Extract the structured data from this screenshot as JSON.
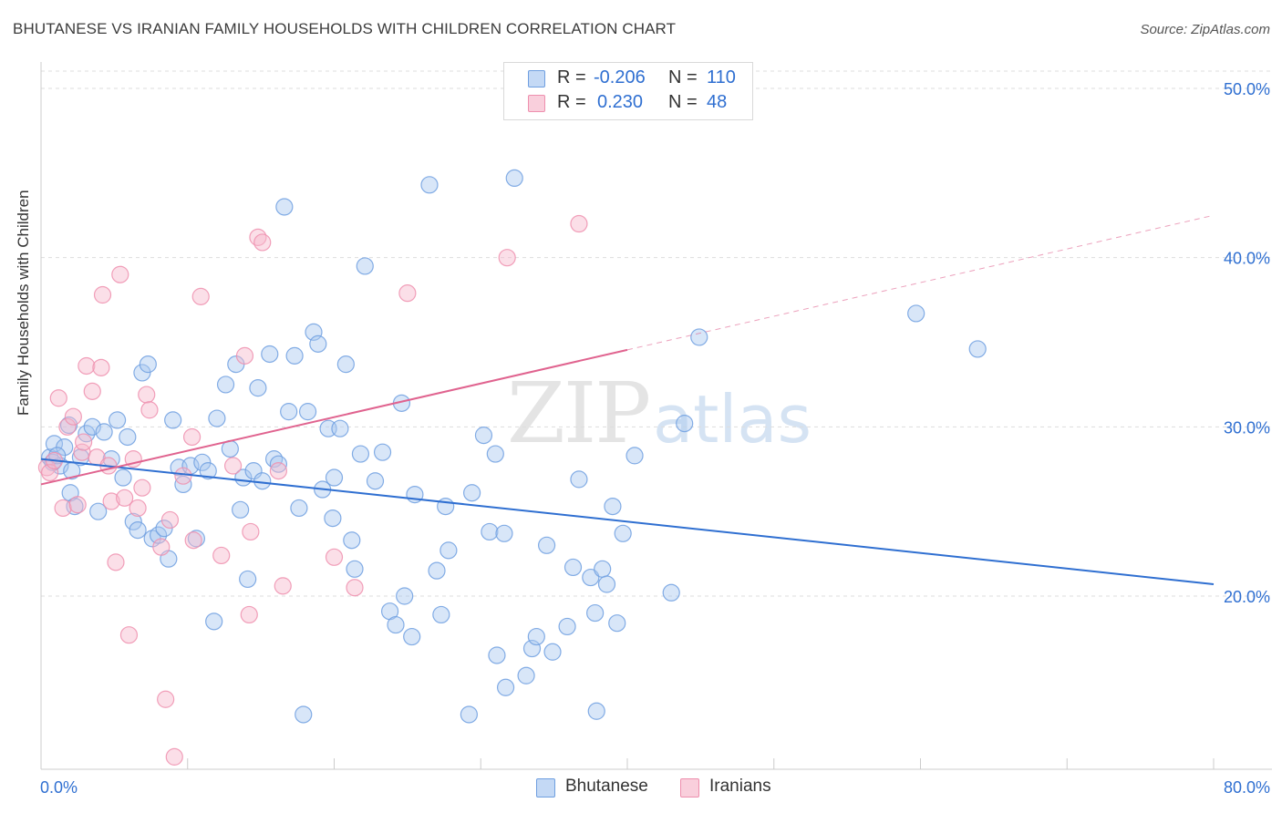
{
  "header": {
    "title": "BHUTANESE VS IRANIAN FAMILY HOUSEHOLDS WITH CHILDREN CORRELATION CHART",
    "source": "Source: ZipAtlas.com"
  },
  "watermark": {
    "zip": "ZIP",
    "atlas": "atlas"
  },
  "legend": {
    "rows": [
      {
        "r_label": "R =",
        "r_value": "-0.206",
        "n_label": "N =",
        "n_value": "110"
      },
      {
        "r_label": "R =",
        "r_value": "0.230",
        "n_label": "N =",
        "n_value": "48"
      }
    ]
  },
  "bottom_legend": {
    "a": "Bhutanese",
    "b": "Iranians"
  },
  "colors": {
    "blue_fill": "#a9c8f0",
    "blue_stroke": "#6f9fe0",
    "blue_line": "#2f6fd1",
    "pink_fill": "#f6b8cc",
    "pink_stroke": "#ee8fae",
    "pink_line": "#e0638f",
    "grid": "#dddddd",
    "tick_label": "#2f6fd1"
  },
  "chart_data": {
    "type": "scatter",
    "title": "BHUTANESE VS IRANIAN FAMILY HOUSEHOLDS WITH CHILDREN CORRELATION CHART",
    "xlabel": "",
    "ylabel": "Family Households with Children",
    "xlim": [
      0,
      80
    ],
    "ylim": [
      10,
      51
    ],
    "x_tick_labels": [
      "0.0%",
      "80.0%"
    ],
    "y_ticks": [
      20,
      30,
      40,
      50
    ],
    "y_tick_labels": [
      "20.0%",
      "30.0%",
      "40.0%",
      "50.0%"
    ],
    "grid": true,
    "legend_position": "top-center",
    "series": [
      {
        "name": "Bhutanese",
        "color": "#a9c8f0",
        "trend": {
          "x": [
            0,
            80
          ],
          "y": [
            28.1,
            20.7
          ],
          "dashed_from": null
        },
        "points": [
          [
            0.6,
            28.2
          ],
          [
            0.9,
            29.0
          ],
          [
            1.3,
            27.7
          ],
          [
            1.6,
            28.8
          ],
          [
            1.9,
            30.1
          ],
          [
            2.0,
            26.1
          ],
          [
            2.3,
            25.3
          ],
          [
            2.7,
            28.2
          ],
          [
            3.1,
            29.6
          ],
          [
            3.5,
            30.0
          ],
          [
            3.9,
            25.0
          ],
          [
            4.3,
            29.7
          ],
          [
            4.8,
            28.1
          ],
          [
            5.2,
            30.4
          ],
          [
            5.6,
            27.0
          ],
          [
            5.9,
            29.4
          ],
          [
            6.3,
            24.4
          ],
          [
            6.6,
            23.9
          ],
          [
            6.9,
            33.2
          ],
          [
            7.3,
            33.7
          ],
          [
            7.6,
            23.4
          ],
          [
            8.0,
            23.6
          ],
          [
            8.4,
            24.0
          ],
          [
            8.7,
            22.2
          ],
          [
            9.0,
            30.4
          ],
          [
            9.4,
            27.6
          ],
          [
            9.7,
            26.6
          ],
          [
            10.2,
            27.7
          ],
          [
            10.6,
            23.4
          ],
          [
            11.0,
            27.9
          ],
          [
            11.4,
            27.4
          ],
          [
            11.8,
            18.5
          ],
          [
            12.0,
            30.5
          ],
          [
            12.6,
            32.5
          ],
          [
            12.9,
            28.7
          ],
          [
            13.3,
            33.7
          ],
          [
            13.6,
            25.1
          ],
          [
            13.8,
            27.0
          ],
          [
            14.1,
            21.0
          ],
          [
            14.5,
            27.4
          ],
          [
            14.8,
            32.3
          ],
          [
            15.1,
            26.8
          ],
          [
            15.6,
            34.3
          ],
          [
            15.9,
            28.1
          ],
          [
            16.2,
            27.8
          ],
          [
            16.6,
            43.0
          ],
          [
            16.9,
            30.9
          ],
          [
            17.3,
            34.2
          ],
          [
            17.6,
            25.2
          ],
          [
            17.9,
            13.0
          ],
          [
            18.2,
            30.9
          ],
          [
            18.6,
            35.6
          ],
          [
            18.9,
            34.9
          ],
          [
            19.2,
            26.3
          ],
          [
            19.6,
            29.9
          ],
          [
            19.9,
            24.6
          ],
          [
            20.0,
            27.0
          ],
          [
            20.4,
            29.9
          ],
          [
            20.8,
            33.7
          ],
          [
            21.2,
            23.3
          ],
          [
            21.4,
            21.6
          ],
          [
            21.8,
            28.4
          ],
          [
            22.1,
            39.5
          ],
          [
            22.8,
            26.8
          ],
          [
            23.3,
            28.5
          ],
          [
            23.8,
            19.1
          ],
          [
            24.2,
            18.3
          ],
          [
            24.6,
            31.4
          ],
          [
            24.8,
            20.0
          ],
          [
            25.3,
            17.6
          ],
          [
            25.5,
            26.0
          ],
          [
            26.5,
            44.3
          ],
          [
            27.0,
            21.5
          ],
          [
            27.3,
            18.9
          ],
          [
            27.6,
            25.3
          ],
          [
            27.8,
            22.7
          ],
          [
            29.2,
            13.0
          ],
          [
            29.4,
            26.1
          ],
          [
            30.2,
            29.5
          ],
          [
            30.6,
            23.8
          ],
          [
            31.0,
            28.4
          ],
          [
            31.1,
            16.5
          ],
          [
            31.6,
            23.7
          ],
          [
            31.7,
            14.6
          ],
          [
            32.3,
            44.7
          ],
          [
            33.1,
            15.3
          ],
          [
            33.5,
            16.9
          ],
          [
            33.8,
            17.6
          ],
          [
            34.5,
            23.0
          ],
          [
            34.9,
            16.7
          ],
          [
            35.9,
            18.2
          ],
          [
            36.3,
            21.7
          ],
          [
            36.7,
            26.9
          ],
          [
            37.5,
            21.1
          ],
          [
            37.9,
            13.2
          ],
          [
            37.8,
            19.0
          ],
          [
            38.3,
            21.6
          ],
          [
            38.6,
            20.7
          ],
          [
            39.0,
            25.3
          ],
          [
            39.3,
            18.4
          ],
          [
            39.7,
            23.7
          ],
          [
            40.5,
            28.3
          ],
          [
            43.0,
            20.2
          ],
          [
            43.9,
            30.2
          ],
          [
            44.9,
            35.3
          ],
          [
            59.7,
            36.7
          ],
          [
            63.9,
            34.6
          ],
          [
            2.1,
            27.4
          ],
          [
            0.8,
            27.9
          ],
          [
            1.1,
            28.3
          ]
        ]
      },
      {
        "name": "Iranians",
        "color": "#f6b8cc",
        "trend": {
          "x": [
            0,
            80
          ],
          "y": [
            26.6,
            42.5
          ],
          "dashed_from": 40.0
        },
        "points": [
          [
            0.4,
            27.6
          ],
          [
            0.6,
            27.3
          ],
          [
            0.9,
            28.0
          ],
          [
            1.2,
            31.7
          ],
          [
            1.5,
            25.2
          ],
          [
            1.8,
            30.0
          ],
          [
            2.2,
            30.6
          ],
          [
            2.5,
            25.4
          ],
          [
            2.8,
            28.5
          ],
          [
            3.1,
            33.6
          ],
          [
            3.5,
            32.1
          ],
          [
            3.8,
            28.2
          ],
          [
            4.1,
            33.5
          ],
          [
            4.2,
            37.8
          ],
          [
            4.6,
            27.7
          ],
          [
            4.8,
            25.6
          ],
          [
            5.1,
            22.0
          ],
          [
            5.4,
            39.0
          ],
          [
            5.7,
            25.8
          ],
          [
            6.0,
            17.7
          ],
          [
            6.3,
            28.1
          ],
          [
            6.6,
            25.2
          ],
          [
            6.9,
            26.4
          ],
          [
            7.2,
            31.9
          ],
          [
            7.4,
            31.0
          ],
          [
            8.2,
            22.9
          ],
          [
            8.5,
            13.9
          ],
          [
            8.8,
            24.5
          ],
          [
            9.1,
            10.5
          ],
          [
            9.7,
            27.1
          ],
          [
            10.3,
            29.4
          ],
          [
            10.4,
            23.3
          ],
          [
            10.9,
            37.7
          ],
          [
            12.3,
            22.4
          ],
          [
            13.1,
            27.7
          ],
          [
            13.9,
            34.2
          ],
          [
            14.2,
            18.9
          ],
          [
            14.3,
            23.8
          ],
          [
            14.8,
            41.2
          ],
          [
            15.1,
            40.9
          ],
          [
            16.2,
            27.4
          ],
          [
            16.5,
            20.6
          ],
          [
            20.0,
            22.3
          ],
          [
            21.4,
            20.5
          ],
          [
            25.0,
            37.9
          ],
          [
            31.8,
            40.0
          ],
          [
            36.7,
            42.0
          ],
          [
            2.9,
            29.1
          ]
        ]
      }
    ]
  }
}
